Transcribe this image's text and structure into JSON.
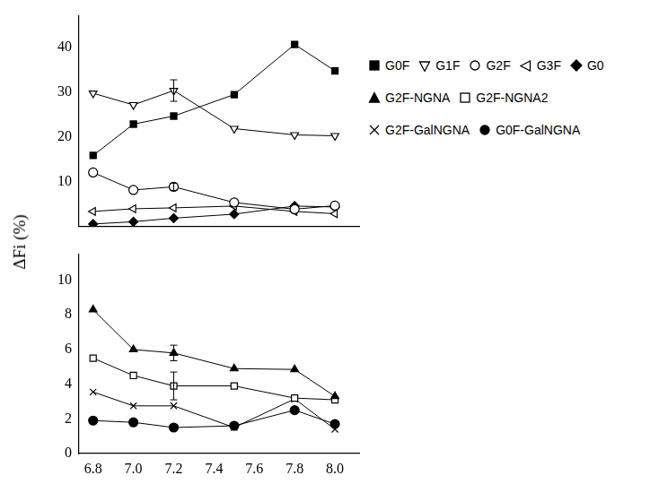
{
  "chart_data": [
    {
      "type": "line",
      "y_label": "ΔFi (%)",
      "legend": "right",
      "grid": false,
      "tick_labels": "y",
      "x": [
        6.8,
        7.0,
        7.2,
        7.5,
        7.8,
        8.0
      ],
      "xlim": [
        6.73,
        8.12
      ],
      "xticks": [
        6.8,
        {
          "value": 7.0,
          "label": "7.0"
        },
        7.2,
        7.4,
        7.6,
        7.8,
        {
          "value": 8.0,
          "label": "8.0"
        }
      ],
      "ylim": [
        0,
        47
      ],
      "yticks": [
        10,
        20,
        30,
        40
      ],
      "series": [
        {
          "name": "G0F",
          "color": "#000000",
          "marker": "filled_square",
          "values": [
            15.8,
            22.8,
            24.6,
            29.4,
            40.6,
            34.7
          ],
          "errors": [
            null,
            null,
            null,
            null,
            null,
            null
          ]
        },
        {
          "name": "G1F",
          "color": "#000000",
          "marker": "open_triangle_down",
          "values": [
            29.7,
            27.1,
            30.3,
            21.8,
            20.4,
            20.2
          ],
          "errors": [
            null,
            null,
            2.4,
            null,
            null,
            null
          ]
        },
        {
          "name": "G2F",
          "color": "#000000",
          "marker": "open_circle",
          "values": [
            12.0,
            8.1,
            8.8,
            5.3,
            3.8,
            4.6
          ],
          "errors": [
            null,
            null,
            0.8,
            null,
            null,
            null
          ]
        },
        {
          "name": "G3F",
          "color": "#000000",
          "marker": "open_triangle_left",
          "values": [
            3.3,
            3.9,
            4.1,
            4.5,
            3.3,
            2.8
          ],
          "errors": [
            null,
            null,
            null,
            null,
            null,
            null
          ]
        },
        {
          "name": "G0",
          "color": "#000000",
          "marker": "filled_diamond",
          "values": [
            0.5,
            1.0,
            1.8,
            2.7,
            4.5,
            4.3
          ],
          "errors": [
            null,
            null,
            null,
            null,
            null,
            null
          ]
        }
      ]
    },
    {
      "type": "line",
      "grid": false,
      "x": [
        6.8,
        7.0,
        7.2,
        7.5,
        7.8,
        8.0
      ],
      "xlim": [
        6.73,
        8.12
      ],
      "xticks": [
        6.8,
        {
          "value": 7.0,
          "label": "7.0"
        },
        7.2,
        7.4,
        7.6,
        7.8,
        {
          "value": 8.0,
          "label": "8.0"
        }
      ],
      "ylim": [
        0,
        11.5
      ],
      "yticks": [
        0,
        2,
        4,
        6,
        8,
        10
      ],
      "series": [
        {
          "name": "G2F-NGNA",
          "color": "#000000",
          "marker": "filled_triangle_up",
          "values": [
            8.3,
            6.0,
            5.8,
            4.9,
            4.85,
            3.3
          ],
          "errors": [
            null,
            null,
            0.45,
            null,
            null,
            null
          ]
        },
        {
          "name": "G2F-NGNA2",
          "color": "#000000",
          "marker": "open_square",
          "values": [
            5.5,
            4.5,
            3.9,
            3.9,
            3.2,
            3.1
          ],
          "errors": [
            null,
            null,
            0.8,
            null,
            null,
            null
          ]
        },
        {
          "name": "G2F-GalNGNA",
          "color": "#000000",
          "marker": "x",
          "values": [
            3.55,
            2.75,
            2.75,
            1.5,
            3.15,
            1.4
          ],
          "errors": [
            null,
            null,
            null,
            null,
            null,
            null
          ]
        },
        {
          "name": "G0F-GalNGNA",
          "color": "#000000",
          "marker": "filled_circle",
          "values": [
            1.9,
            1.8,
            1.5,
            1.6,
            2.5,
            1.7
          ],
          "errors": [
            null,
            null,
            null,
            null,
            null,
            null
          ]
        }
      ]
    }
  ]
}
